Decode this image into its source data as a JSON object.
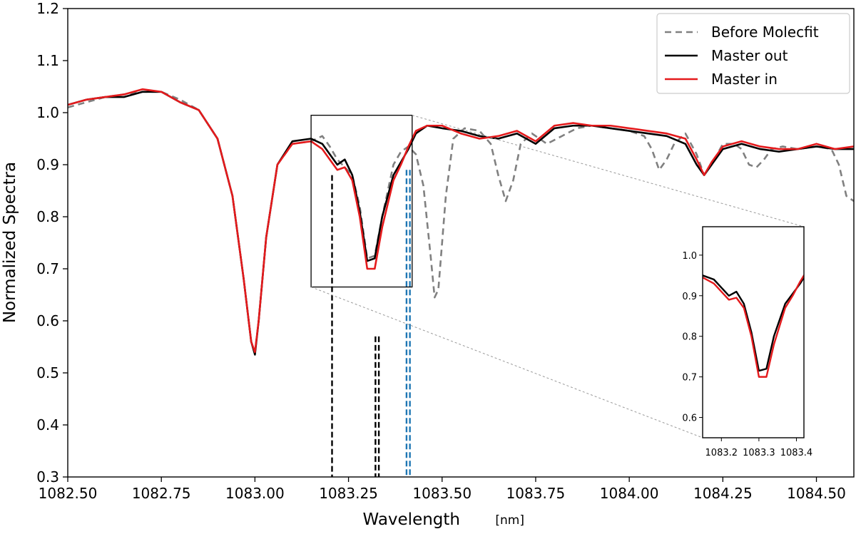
{
  "chart_data": {
    "type": "line",
    "xlabel": "Wavelength",
    "xlabel_unit": "[nm]",
    "ylabel": "Normalized Spectra",
    "xlim": [
      1082.5,
      1084.6
    ],
    "ylim": [
      0.3,
      1.2
    ],
    "x_ticks": [
      "1082.50",
      "1082.75",
      "1083.00",
      "1083.25",
      "1083.50",
      "1083.75",
      "1084.00",
      "1084.25",
      "1084.50"
    ],
    "y_ticks": [
      "0.3",
      "0.4",
      "0.5",
      "0.6",
      "0.7",
      "0.8",
      "0.9",
      "1.0",
      "1.1",
      "1.2"
    ],
    "grid": false,
    "legend_position": "top-right",
    "series": [
      {
        "name": "Before Molecfit",
        "color": "#808080",
        "style": "dashed",
        "x": [
          1082.5,
          1082.55,
          1082.6,
          1082.65,
          1082.7,
          1082.75,
          1082.8,
          1082.85,
          1082.9,
          1082.94,
          1082.97,
          1082.99,
          1083.0,
          1083.01,
          1083.03,
          1083.06,
          1083.1,
          1083.15,
          1083.18,
          1083.2,
          1083.22,
          1083.24,
          1083.26,
          1083.28,
          1083.3,
          1083.32,
          1083.34,
          1083.37,
          1083.39,
          1083.41,
          1083.43,
          1083.45,
          1083.47,
          1083.48,
          1083.49,
          1083.51,
          1083.53,
          1083.56,
          1083.6,
          1083.63,
          1083.65,
          1083.67,
          1083.69,
          1083.71,
          1083.74,
          1083.78,
          1083.82,
          1083.86,
          1083.9,
          1083.95,
          1084.0,
          1084.04,
          1084.06,
          1084.08,
          1084.1,
          1084.12,
          1084.15,
          1084.18,
          1084.2,
          1084.22,
          1084.25,
          1084.28,
          1084.3,
          1084.32,
          1084.34,
          1084.36,
          1084.38,
          1084.41,
          1084.45,
          1084.5,
          1084.54,
          1084.56,
          1084.58,
          1084.6
        ],
        "y": [
          1.01,
          1.02,
          1.03,
          1.035,
          1.04,
          1.04,
          1.025,
          1.005,
          0.95,
          0.84,
          0.68,
          0.56,
          0.54,
          0.6,
          0.76,
          0.9,
          0.94,
          0.945,
          0.955,
          0.935,
          0.91,
          0.895,
          0.88,
          0.82,
          0.72,
          0.725,
          0.8,
          0.9,
          0.925,
          0.935,
          0.92,
          0.86,
          0.72,
          0.645,
          0.66,
          0.84,
          0.95,
          0.97,
          0.965,
          0.94,
          0.88,
          0.83,
          0.87,
          0.94,
          0.96,
          0.94,
          0.955,
          0.97,
          0.975,
          0.97,
          0.965,
          0.955,
          0.93,
          0.89,
          0.91,
          0.94,
          0.96,
          0.92,
          0.88,
          0.9,
          0.94,
          0.94,
          0.93,
          0.9,
          0.895,
          0.91,
          0.93,
          0.935,
          0.93,
          0.935,
          0.93,
          0.9,
          0.84,
          0.83
        ]
      },
      {
        "name": "Master out",
        "color": "#000000",
        "style": "solid",
        "x": [
          1082.5,
          1082.55,
          1082.6,
          1082.65,
          1082.7,
          1082.75,
          1082.8,
          1082.85,
          1082.9,
          1082.94,
          1082.97,
          1082.99,
          1083.0,
          1083.01,
          1083.03,
          1083.06,
          1083.1,
          1083.15,
          1083.18,
          1083.2,
          1083.22,
          1083.24,
          1083.26,
          1083.28,
          1083.3,
          1083.32,
          1083.34,
          1083.37,
          1083.39,
          1083.41,
          1083.43,
          1083.46,
          1083.5,
          1083.55,
          1083.6,
          1083.65,
          1083.7,
          1083.75,
          1083.8,
          1083.85,
          1083.9,
          1083.95,
          1084.0,
          1084.05,
          1084.1,
          1084.15,
          1084.18,
          1084.2,
          1084.22,
          1084.25,
          1084.3,
          1084.35,
          1084.4,
          1084.45,
          1084.5,
          1084.55,
          1084.6
        ],
        "y": [
          1.015,
          1.025,
          1.03,
          1.03,
          1.04,
          1.04,
          1.02,
          1.005,
          0.95,
          0.84,
          0.68,
          0.56,
          0.535,
          0.6,
          0.76,
          0.9,
          0.945,
          0.95,
          0.94,
          0.92,
          0.9,
          0.91,
          0.88,
          0.81,
          0.715,
          0.72,
          0.8,
          0.88,
          0.905,
          0.93,
          0.96,
          0.975,
          0.97,
          0.965,
          0.955,
          0.95,
          0.96,
          0.94,
          0.97,
          0.975,
          0.975,
          0.97,
          0.965,
          0.96,
          0.955,
          0.94,
          0.9,
          0.88,
          0.9,
          0.93,
          0.94,
          0.93,
          0.925,
          0.93,
          0.935,
          0.93,
          0.93
        ]
      },
      {
        "name": "Master in",
        "color": "#e41a1c",
        "style": "solid",
        "x": [
          1082.5,
          1082.55,
          1082.6,
          1082.65,
          1082.7,
          1082.75,
          1082.8,
          1082.85,
          1082.9,
          1082.94,
          1082.97,
          1082.99,
          1083.0,
          1083.01,
          1083.03,
          1083.06,
          1083.1,
          1083.15,
          1083.18,
          1083.2,
          1083.22,
          1083.24,
          1083.26,
          1083.28,
          1083.3,
          1083.32,
          1083.34,
          1083.37,
          1083.39,
          1083.41,
          1083.43,
          1083.46,
          1083.5,
          1083.55,
          1083.6,
          1083.65,
          1083.7,
          1083.75,
          1083.8,
          1083.85,
          1083.9,
          1083.95,
          1084.0,
          1084.05,
          1084.1,
          1084.15,
          1084.18,
          1084.2,
          1084.22,
          1084.25,
          1084.3,
          1084.35,
          1084.4,
          1084.45,
          1084.5,
          1084.55,
          1084.6
        ],
        "y": [
          1.015,
          1.025,
          1.03,
          1.035,
          1.045,
          1.04,
          1.02,
          1.005,
          0.95,
          0.84,
          0.68,
          0.56,
          0.54,
          0.6,
          0.76,
          0.9,
          0.94,
          0.945,
          0.93,
          0.91,
          0.89,
          0.895,
          0.87,
          0.8,
          0.7,
          0.7,
          0.78,
          0.87,
          0.9,
          0.935,
          0.965,
          0.975,
          0.975,
          0.96,
          0.95,
          0.955,
          0.965,
          0.945,
          0.975,
          0.98,
          0.975,
          0.975,
          0.97,
          0.965,
          0.96,
          0.95,
          0.91,
          0.88,
          0.905,
          0.935,
          0.945,
          0.935,
          0.93,
          0.93,
          0.94,
          0.93,
          0.935
        ]
      }
    ],
    "markers": [
      {
        "x": 1083.206,
        "y_top": 0.88,
        "color": "#000000"
      },
      {
        "x": 1083.322,
        "y_top": 0.57,
        "color": "#000000"
      },
      {
        "x": 1083.331,
        "y_top": 0.57,
        "color": "#000000"
      },
      {
        "x": 1083.405,
        "y_top": 0.89,
        "color": "#1f77b4"
      },
      {
        "x": 1083.414,
        "y_top": 0.89,
        "color": "#1f77b4"
      }
    ],
    "zoom_box": {
      "xlim": [
        1083.15,
        1083.42
      ],
      "ylim": [
        0.665,
        0.995
      ]
    },
    "inset": {
      "xlim": [
        1083.15,
        1083.42
      ],
      "ylim": [
        0.55,
        1.07
      ],
      "x_ticks": [
        "1083.2",
        "1083.3",
        "1083.4"
      ],
      "y_ticks": [
        "0.6",
        "0.7",
        "0.8",
        "0.9",
        "1.0"
      ]
    }
  }
}
